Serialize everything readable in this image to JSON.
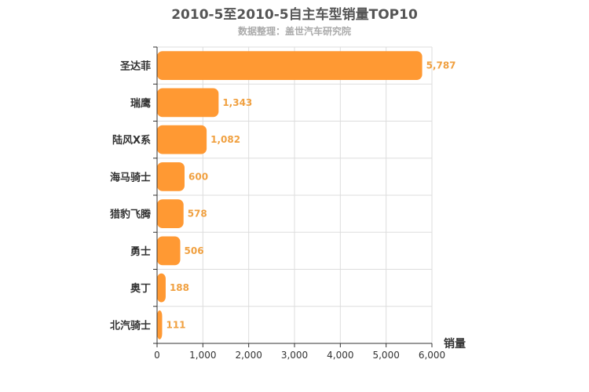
{
  "chart_data": {
    "type": "bar",
    "orientation": "horizontal",
    "title": "2010-5至2010-5自主车型销量TOP10",
    "subtitle": "数据整理：盖世汽车研究院",
    "xlabel": "销量",
    "ylabel": "",
    "xlim": [
      0,
      6000
    ],
    "xticks": [
      0,
      1000,
      2000,
      3000,
      4000,
      5000,
      6000
    ],
    "xtick_labels": [
      "0",
      "1,000",
      "2,000",
      "3,000",
      "4,000",
      "5,000",
      "6,000"
    ],
    "grid": true,
    "categories": [
      "圣达菲",
      "瑞鹰",
      "陆风X系",
      "海马骑士",
      "猎豹飞腾",
      "勇士",
      "奥丁",
      "北汽骑士"
    ],
    "values": [
      5787,
      1343,
      1082,
      600,
      578,
      506,
      188,
      111
    ],
    "data_labels": [
      "5,787",
      "1,343",
      "1,082",
      "600",
      "578",
      "506",
      "188",
      "111"
    ],
    "bar_color": "#ff9933",
    "label_color": "#f0a040"
  }
}
